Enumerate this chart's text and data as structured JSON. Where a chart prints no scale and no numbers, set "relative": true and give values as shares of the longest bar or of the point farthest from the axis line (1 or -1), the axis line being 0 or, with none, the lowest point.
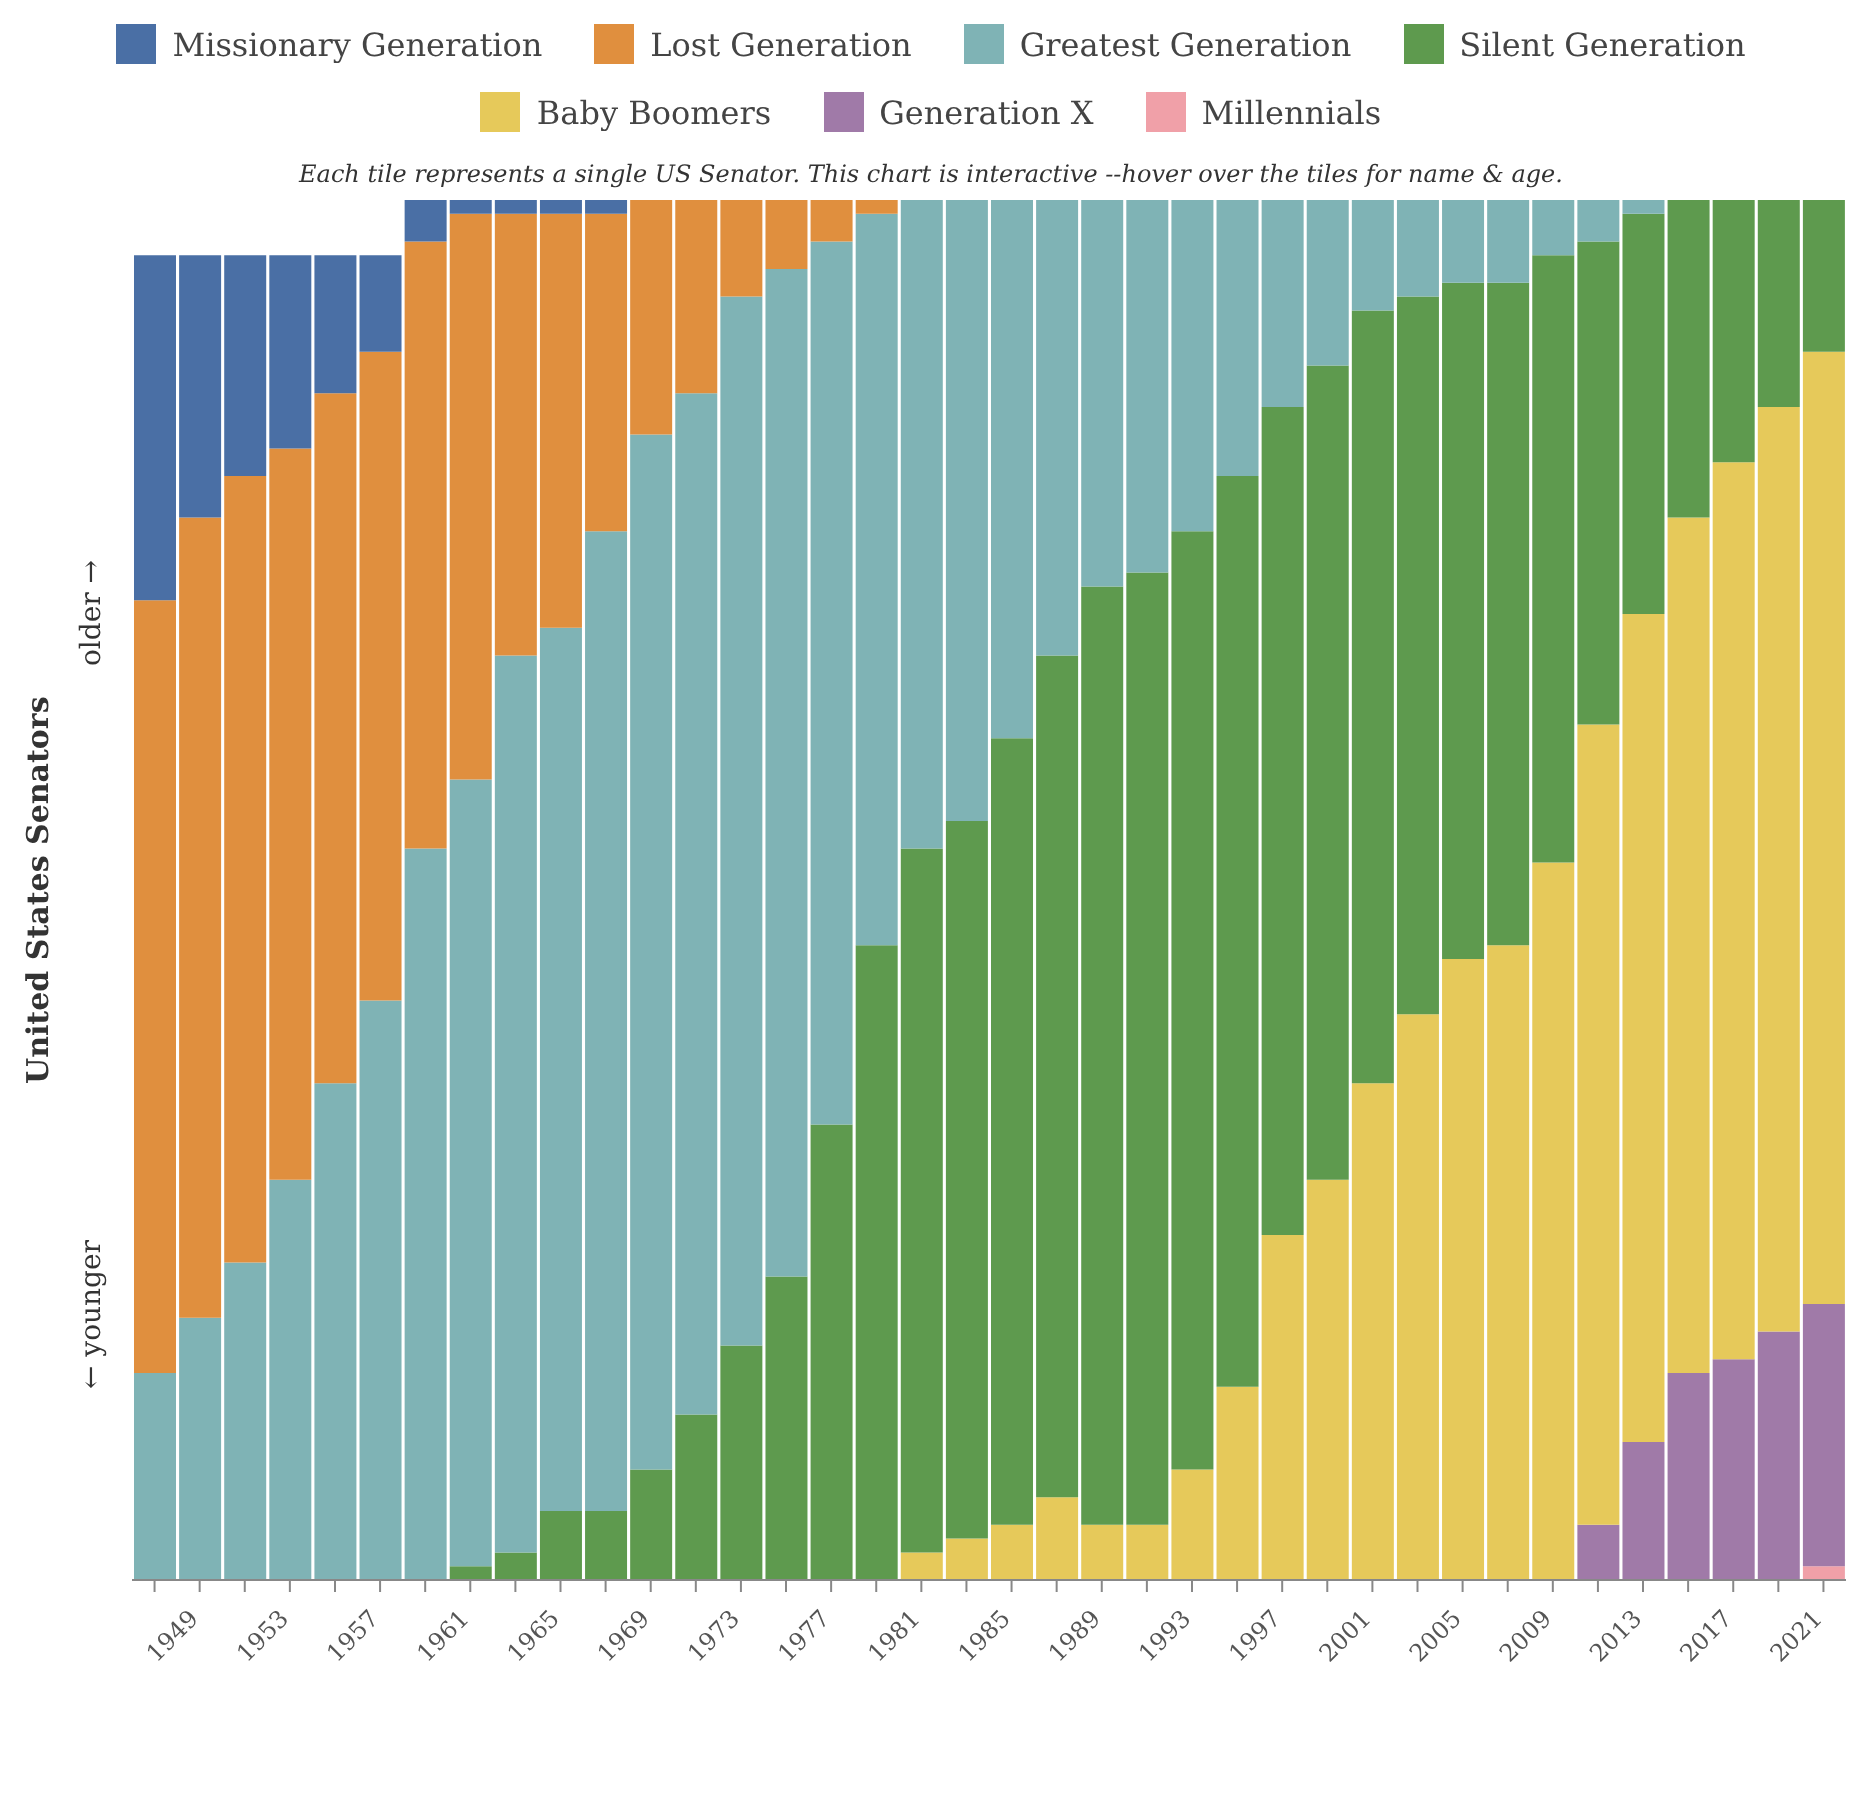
{
  "chart_data": {
    "type": "bar",
    "stacked": true,
    "relative": true,
    "subtitle": "Each tile represents a single US Senator. This chart is interactive --hover over the tiles for name & age.",
    "ylabel": "United States Senators",
    "annotations": [
      "older →",
      "← younger"
    ],
    "legend": "top",
    "categories": [
      null,
      "1949",
      null,
      "1953",
      null,
      "1957",
      null,
      "1961",
      null,
      "1965",
      null,
      "1969",
      null,
      "1973",
      null,
      "1977",
      null,
      "1981",
      null,
      "1985",
      null,
      "1989",
      null,
      "1993",
      null,
      "1997",
      null,
      "2001",
      null,
      "2005",
      null,
      "2009",
      null,
      "2013",
      null,
      "2017",
      null,
      "2021"
    ],
    "series": [
      {
        "name": "Millennials",
        "color": "#f0a0a8",
        "values": [
          0,
          0,
          0,
          0,
          0,
          0,
          0,
          0,
          0,
          0,
          0,
          0,
          0,
          0,
          0,
          0,
          0,
          0,
          0,
          0,
          0,
          0,
          0,
          0,
          0,
          0,
          0,
          0,
          0,
          0,
          0,
          0,
          0,
          0,
          0,
          0,
          0,
          0.01
        ]
      },
      {
        "name": "Generation X",
        "color": "#a07aa8",
        "values": [
          0,
          0,
          0,
          0,
          0,
          0,
          0,
          0,
          0,
          0,
          0,
          0,
          0,
          0,
          0,
          0,
          0,
          0,
          0,
          0,
          0,
          0,
          0,
          0,
          0,
          0,
          0,
          0,
          0,
          0,
          0,
          0,
          0.04,
          0.1,
          0.15,
          0.16,
          0.18,
          0.19
        ]
      },
      {
        "name": "Baby Boomers",
        "color": "#e6c95a",
        "values": [
          0,
          0,
          0,
          0,
          0,
          0,
          0,
          0,
          0,
          0,
          0,
          0,
          0,
          0,
          0,
          0,
          0,
          0.02,
          0.03,
          0.04,
          0.06,
          0.04,
          0.04,
          0.08,
          0.14,
          0.25,
          0.29,
          0.36,
          0.41,
          0.45,
          0.46,
          0.52,
          0.58,
          0.6,
          0.62,
          0.65,
          0.67,
          0.69
        ]
      },
      {
        "name": "Silent Generation",
        "color": "#5e9a4e",
        "values": [
          0,
          0,
          0,
          0,
          0,
          0,
          0,
          0.01,
          0.02,
          0.05,
          0.05,
          0.08,
          0.12,
          0.17,
          0.22,
          0.33,
          0.46,
          0.51,
          0.52,
          0.57,
          0.61,
          0.68,
          0.69,
          0.68,
          0.66,
          0.6,
          0.59,
          0.56,
          0.52,
          0.49,
          0.48,
          0.44,
          0.35,
          0.29,
          0.23,
          0.19,
          0.15,
          0.11
        ]
      },
      {
        "name": "Greatest Generation",
        "color": "#7fb3b5",
        "values": [
          0.15,
          0.19,
          0.23,
          0.29,
          0.36,
          0.42,
          0.53,
          0.57,
          0.65,
          0.64,
          0.71,
          0.75,
          0.74,
          0.76,
          0.73,
          0.64,
          0.53,
          0.47,
          0.45,
          0.39,
          0.33,
          0.28,
          0.27,
          0.24,
          0.2,
          0.15,
          0.12,
          0.08,
          0.07,
          0.06,
          0.06,
          0.04,
          0.03,
          0.01,
          0,
          0,
          0,
          0
        ]
      },
      {
        "name": "Lost Generation",
        "color": "#e08f3e",
        "values": [
          0.56,
          0.58,
          0.57,
          0.53,
          0.5,
          0.47,
          0.44,
          0.41,
          0.32,
          0.3,
          0.23,
          0.17,
          0.14,
          0.07,
          0.05,
          0.03,
          0.01,
          0,
          0,
          0,
          0,
          0,
          0,
          0,
          0,
          0,
          0,
          0,
          0,
          0,
          0,
          0,
          0,
          0,
          0,
          0,
          0,
          0
        ]
      },
      {
        "name": "Missionary Generation",
        "color": "#4a6fa5",
        "values": [
          0.25,
          0.19,
          0.16,
          0.14,
          0.1,
          0.07,
          0.03,
          0.01,
          0.01,
          0.01,
          0.01,
          0,
          0,
          0,
          0,
          0,
          0,
          0,
          0,
          0,
          0,
          0,
          0,
          0,
          0,
          0,
          0,
          0,
          0,
          0,
          0,
          0,
          0,
          0,
          0,
          0,
          0,
          0
        ]
      }
    ]
  }
}
